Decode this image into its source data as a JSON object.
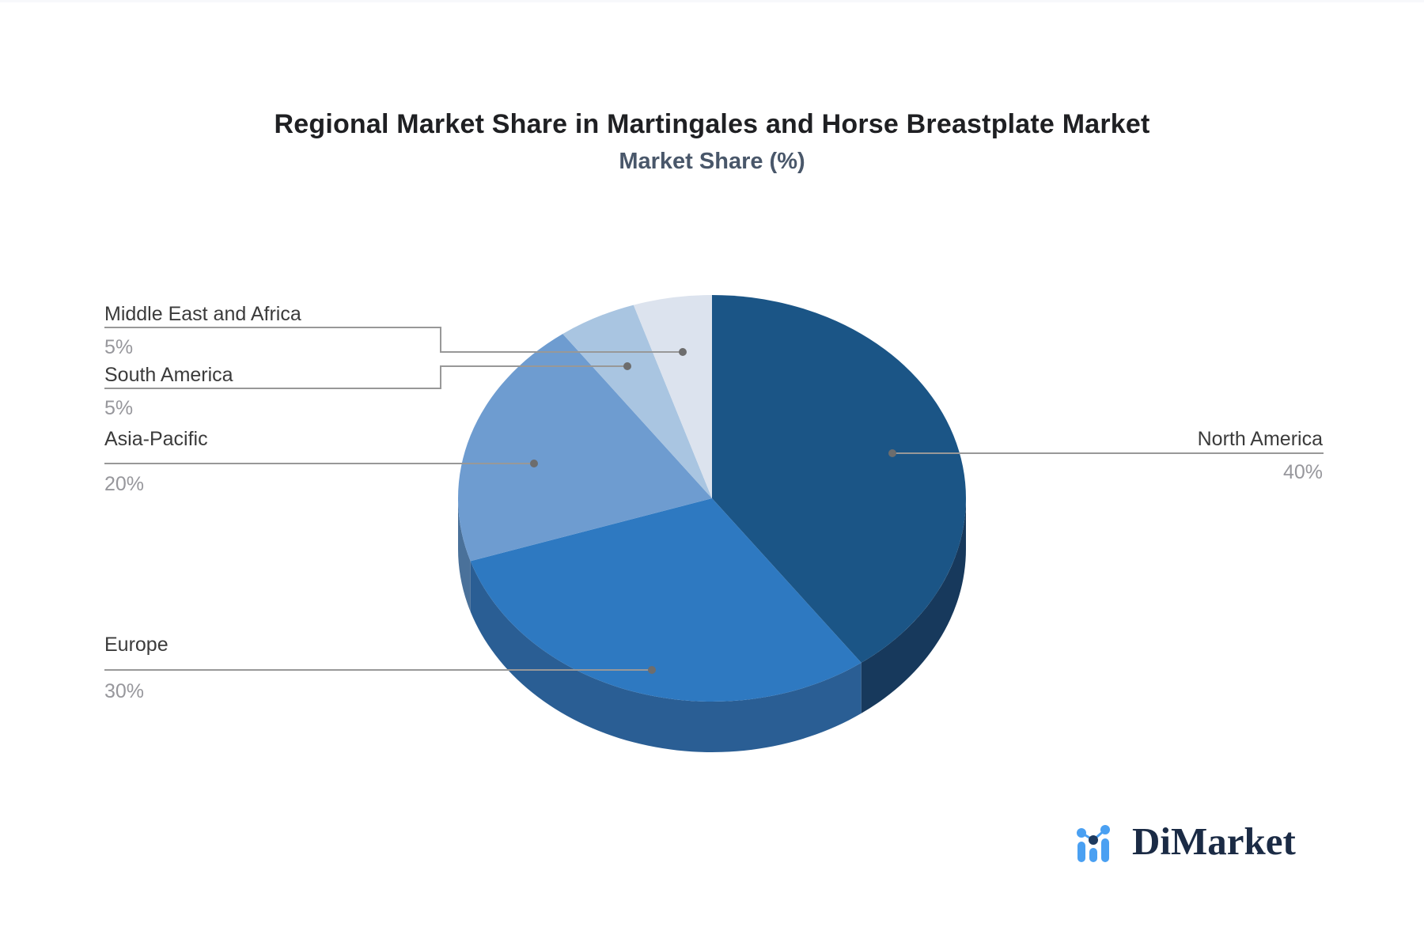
{
  "header": {
    "title": "Regional Market Share in Martingales and Horse Breastplate Market",
    "subtitle": "Market Share (%)"
  },
  "chart_data": {
    "type": "pie",
    "style": "3d",
    "title": "Regional Market Share in Martingales and Horse Breastplate Market",
    "subtitle": "Market Share (%)",
    "unit": "percent",
    "start_angle_deg": 0,
    "direction": "clockwise",
    "legend_position": "callouts",
    "slices": [
      {
        "label": "North America",
        "value": 40,
        "display": "40%",
        "color": "#1b5586",
        "side_color": "#17395c"
      },
      {
        "label": "Europe",
        "value": 30,
        "display": "30%",
        "color": "#2e79c1",
        "side_color": "#2a5e94"
      },
      {
        "label": "Asia-Pacific",
        "value": 20,
        "display": "20%",
        "color": "#6e9cd0",
        "side_color": "#4a719a"
      },
      {
        "label": "South America",
        "value": 5,
        "display": "5%",
        "color": "#a9c5e1",
        "side_color": "#7fa3c6"
      },
      {
        "label": "Middle East and Africa",
        "value": 5,
        "display": "5%",
        "color": "#dce3ee",
        "side_color": "#b8c4d6"
      }
    ],
    "callout_line_color": "#989898",
    "callout_dot_color": "#6d6d6d"
  },
  "brand": {
    "name": "DiMarket",
    "icon": "bar-line-chart-logo",
    "icon_bar_color": "#4aa0f2",
    "icon_dot_dark_color": "#1d3a5f",
    "text_color": "#1b2b45"
  }
}
